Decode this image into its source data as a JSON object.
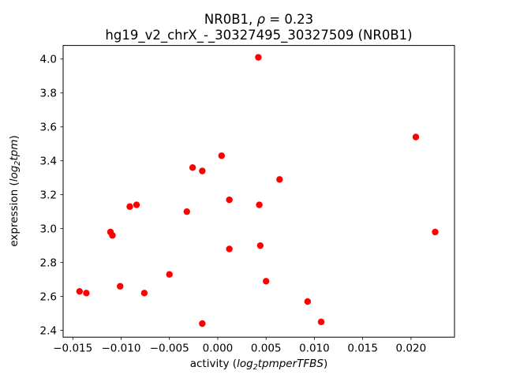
{
  "chart_data": {
    "type": "scatter",
    "title": {
      "prefix": "NR0B1, ",
      "rho": "ρ",
      "suffix": " = 0.23"
    },
    "subtitle": "hg19_v2_chrX_-_30327495_30327509 (NR0B1)",
    "xlabel": {
      "pre": "activity (",
      "func": "log",
      "sub": "2",
      "arg": "tpmperTFBS",
      "post": ")"
    },
    "ylabel": {
      "pre": "expression (",
      "func": "log",
      "sub": "2",
      "arg": "tpm",
      "post": ")"
    },
    "xlim": [
      -0.016,
      0.0245
    ],
    "ylim": [
      2.36,
      4.08
    ],
    "xticks": [
      {
        "v": -0.015,
        "label": "−0.015"
      },
      {
        "v": -0.01,
        "label": "−0.010"
      },
      {
        "v": -0.005,
        "label": "−0.005"
      },
      {
        "v": 0.0,
        "label": "0.000"
      },
      {
        "v": 0.005,
        "label": "0.005"
      },
      {
        "v": 0.01,
        "label": "0.010"
      },
      {
        "v": 0.015,
        "label": "0.015"
      },
      {
        "v": 0.02,
        "label": "0.020"
      }
    ],
    "yticks": [
      {
        "v": 2.4,
        "label": "2.4"
      },
      {
        "v": 2.6,
        "label": "2.6"
      },
      {
        "v": 2.8,
        "label": "2.8"
      },
      {
        "v": 3.0,
        "label": "3.0"
      },
      {
        "v": 3.2,
        "label": "3.2"
      },
      {
        "v": 3.4,
        "label": "3.4"
      },
      {
        "v": 3.6,
        "label": "3.6"
      },
      {
        "v": 3.8,
        "label": "3.8"
      },
      {
        "v": 4.0,
        "label": "4.0"
      }
    ],
    "marker_color": "#ff0000",
    "grid": false,
    "legend": "none",
    "points": [
      [
        -0.0143,
        2.63
      ],
      [
        -0.0136,
        2.62
      ],
      [
        -0.0111,
        2.98
      ],
      [
        -0.0109,
        2.96
      ],
      [
        -0.0101,
        2.66
      ],
      [
        -0.0091,
        3.13
      ],
      [
        -0.0084,
        3.14
      ],
      [
        -0.0076,
        2.62
      ],
      [
        -0.005,
        2.73
      ],
      [
        -0.0032,
        3.1
      ],
      [
        -0.0026,
        3.36
      ],
      [
        -0.0016,
        3.34
      ],
      [
        -0.0016,
        2.44
      ],
      [
        0.0004,
        3.43
      ],
      [
        0.0012,
        3.17
      ],
      [
        0.0012,
        2.88
      ],
      [
        0.0042,
        4.01
      ],
      [
        0.0043,
        3.14
      ],
      [
        0.0044,
        2.9
      ],
      [
        0.005,
        2.69
      ],
      [
        0.0064,
        3.29
      ],
      [
        0.0093,
        2.57
      ],
      [
        0.0107,
        2.45
      ],
      [
        0.0205,
        3.54
      ],
      [
        0.0225,
        2.98
      ]
    ]
  }
}
